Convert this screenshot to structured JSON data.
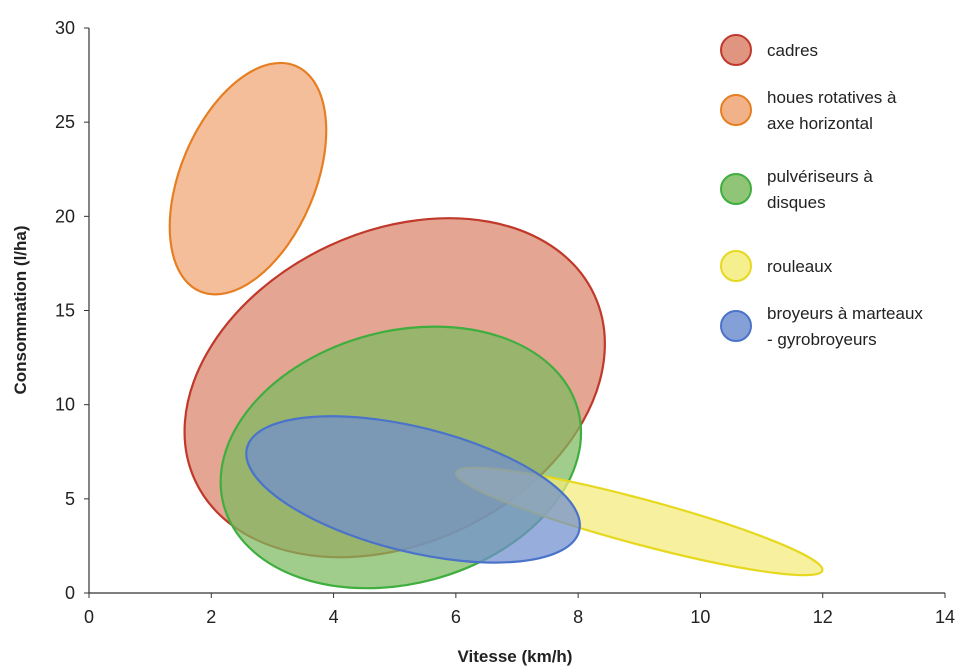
{
  "chart_data": {
    "type": "scatter",
    "xlabel": "Vitesse (km/h)",
    "ylabel": "Consommation (l/ha)",
    "xlim": [
      0,
      14
    ],
    "ylim": [
      0,
      30
    ],
    "x_ticks": [
      "0",
      "2",
      "4",
      "6",
      "8",
      "10",
      "12",
      "14"
    ],
    "y_ticks": [
      "0",
      "5",
      "10",
      "15",
      "20",
      "25",
      "30"
    ],
    "grid": false,
    "legend_position": "top-right",
    "series": [
      {
        "name": "cadres",
        "legend_lines": [
          "cadres"
        ],
        "fill": "#d9826a",
        "stroke": "#c0392b",
        "region": {
          "cx": 5.0,
          "cy": 10.9,
          "rx": 3.6,
          "ry": 8.3,
          "rotation_deg": 25
        }
      },
      {
        "name": "houes rotatives à axe horizontal",
        "legend_lines": [
          "houes rotatives à",
          "axe horizontal"
        ],
        "fill": "#f0a574",
        "stroke": "#e67e22",
        "region": {
          "cx": 2.6,
          "cy": 22.0,
          "rx": 1.1,
          "ry": 6.5,
          "rotation_deg": -23
        }
      },
      {
        "name": "pulvériseurs à disques",
        "legend_lines": [
          "pulvériseurs à",
          "disques"
        ],
        "fill": "#7cba5e",
        "stroke": "#3fae3f",
        "region": {
          "cx": 5.1,
          "cy": 7.2,
          "rx": 3.0,
          "ry": 6.7,
          "rotation_deg": 15
        }
      },
      {
        "name": "rouleaux",
        "legend_lines": [
          "rouleaux"
        ],
        "fill": "#f4ec7a",
        "stroke": "#e6d81f",
        "region": {
          "cx": 9.0,
          "cy": 3.8,
          "rx": 3.1,
          "ry": 1.2,
          "rotation_deg": -15
        }
      },
      {
        "name": "broyeurs à marteaux - gyrobroyeurs",
        "legend_lines": [
          "broyeurs à marteaux",
          "- gyrobroyeurs"
        ],
        "fill": "#6f8fd0",
        "stroke": "#4a73c9",
        "region": {
          "cx": 5.3,
          "cy": 5.5,
          "rx": 2.8,
          "ry": 3.3,
          "rotation_deg": -14
        }
      }
    ]
  }
}
